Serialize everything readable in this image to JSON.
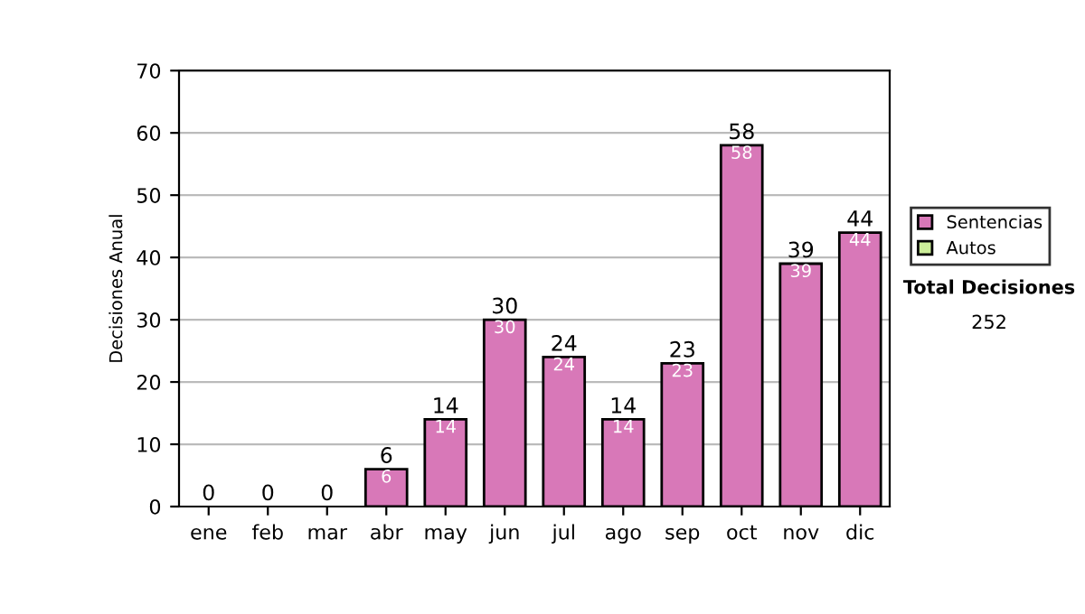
{
  "chart_data": {
    "type": "bar",
    "stacked": true,
    "ylabel": "Decisiones Anual",
    "categories": [
      "ene",
      "feb",
      "mar",
      "abr",
      "may",
      "jun",
      "jul",
      "ago",
      "sep",
      "oct",
      "nov",
      "dic"
    ],
    "series": [
      {
        "name": "Sentencias",
        "color": "#d878b8",
        "values": [
          0,
          0,
          0,
          6,
          14,
          30,
          24,
          14,
          23,
          58,
          39,
          44
        ],
        "value_labels": [
          null,
          null,
          null,
          "6",
          "14",
          "30",
          "24",
          "14",
          "23",
          "58",
          "39",
          "44"
        ]
      },
      {
        "name": "Autos",
        "color": "#ccee99",
        "values": [
          0,
          0,
          0,
          0,
          0,
          0,
          0,
          0,
          0,
          0,
          0,
          0
        ]
      }
    ],
    "totals": [
      "0",
      "0",
      "0",
      "6",
      "14",
      "30",
      "24",
      "14",
      "23",
      "58",
      "39",
      "44"
    ],
    "ylim": [
      0,
      70
    ],
    "yticks": [
      0,
      10,
      20,
      30,
      40,
      50,
      60,
      70
    ],
    "grid": "y",
    "legend": "right",
    "annotations": [
      "Total Decisiones",
      "252"
    ]
  }
}
